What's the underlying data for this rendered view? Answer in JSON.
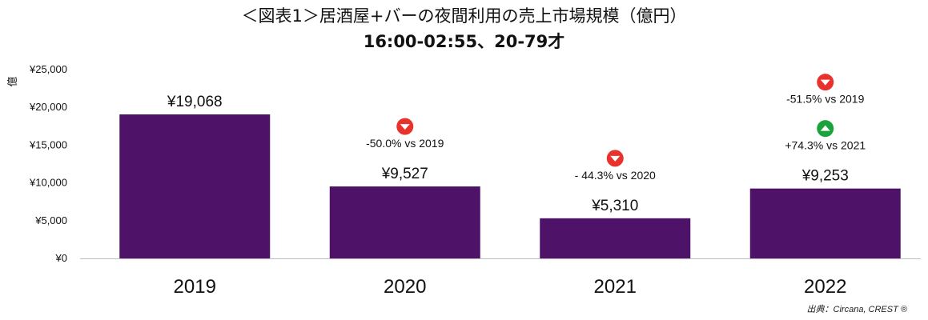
{
  "title": "＜図表1＞居酒屋+バーの夜間利用の売上市場規模（億円）",
  "subtitle": "16:00-02:55、20-79才",
  "source": "出典：Circana, CREST ®",
  "colors": {
    "bar": "#4f1269",
    "down": "#e8322b",
    "up": "#1aa33a",
    "axis": "#bdbdbd"
  },
  "chart_data": {
    "type": "bar",
    "title": "＜図表1＞居酒屋+バーの夜間利用の売上市場規模（億円）",
    "subtitle": "16:00-02:55、20-79才",
    "ylabel": "億",
    "ylim": [
      0,
      25000
    ],
    "yticks": [
      0,
      5000,
      10000,
      15000,
      20000,
      25000
    ],
    "ytick_labels": [
      "¥0",
      "¥5,000",
      "¥10,000",
      "¥15,000",
      "¥20,000",
      "¥25,000"
    ],
    "grid": false,
    "categories": [
      "2019",
      "2020",
      "2021",
      "2022"
    ],
    "values": [
      19068,
      9527,
      5310,
      9253
    ],
    "value_labels": [
      "¥19,068",
      "¥9,527",
      "¥5,310",
      "¥9,253"
    ],
    "annotations": [
      {
        "category": "2020",
        "direction": "down",
        "text": "-50.0% vs 2019"
      },
      {
        "category": "2021",
        "direction": "down",
        "text": "- 44.3% vs 2020"
      },
      {
        "category": "2022",
        "direction": "down",
        "text": "-51.5% vs 2019"
      },
      {
        "category": "2022",
        "direction": "up",
        "text": "+74.3% vs 2021"
      }
    ]
  }
}
